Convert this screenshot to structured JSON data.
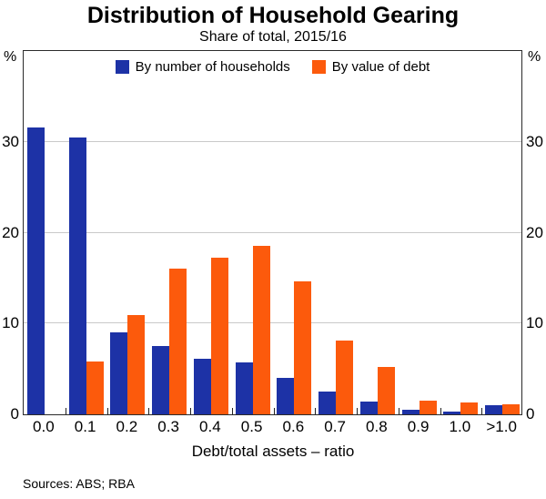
{
  "chart_data": {
    "type": "bar",
    "title": "Distribution of Household Gearing",
    "subtitle": "Share of total, 2015/16",
    "categories": [
      "0.0",
      "0.1",
      "0.2",
      "0.3",
      "0.4",
      "0.5",
      "0.6",
      "0.7",
      "0.8",
      "0.9",
      "1.0",
      ">1.0"
    ],
    "series": [
      {
        "name": "By number of households",
        "color": "#1d32a6",
        "values": [
          31.6,
          30.5,
          9.0,
          7.5,
          6.1,
          5.7,
          4.0,
          2.5,
          1.4,
          0.5,
          0.3,
          1.0
        ]
      },
      {
        "name": "By value of debt",
        "color": "#fc5a0c",
        "values": [
          0.0,
          5.8,
          10.9,
          16.0,
          17.2,
          18.5,
          14.6,
          8.1,
          5.2,
          1.5,
          1.3,
          1.1
        ]
      }
    ],
    "xlabel": "Debt/total assets – ratio",
    "ylabel_left": "%",
    "ylabel_right": "%",
    "ylim": [
      0,
      40
    ],
    "yticks": [
      0,
      10,
      20,
      30
    ],
    "gridlines": [
      10,
      20,
      30
    ],
    "legend_position": "top-center-inside",
    "grid": true,
    "footer": "Sources: ABS; RBA"
  }
}
